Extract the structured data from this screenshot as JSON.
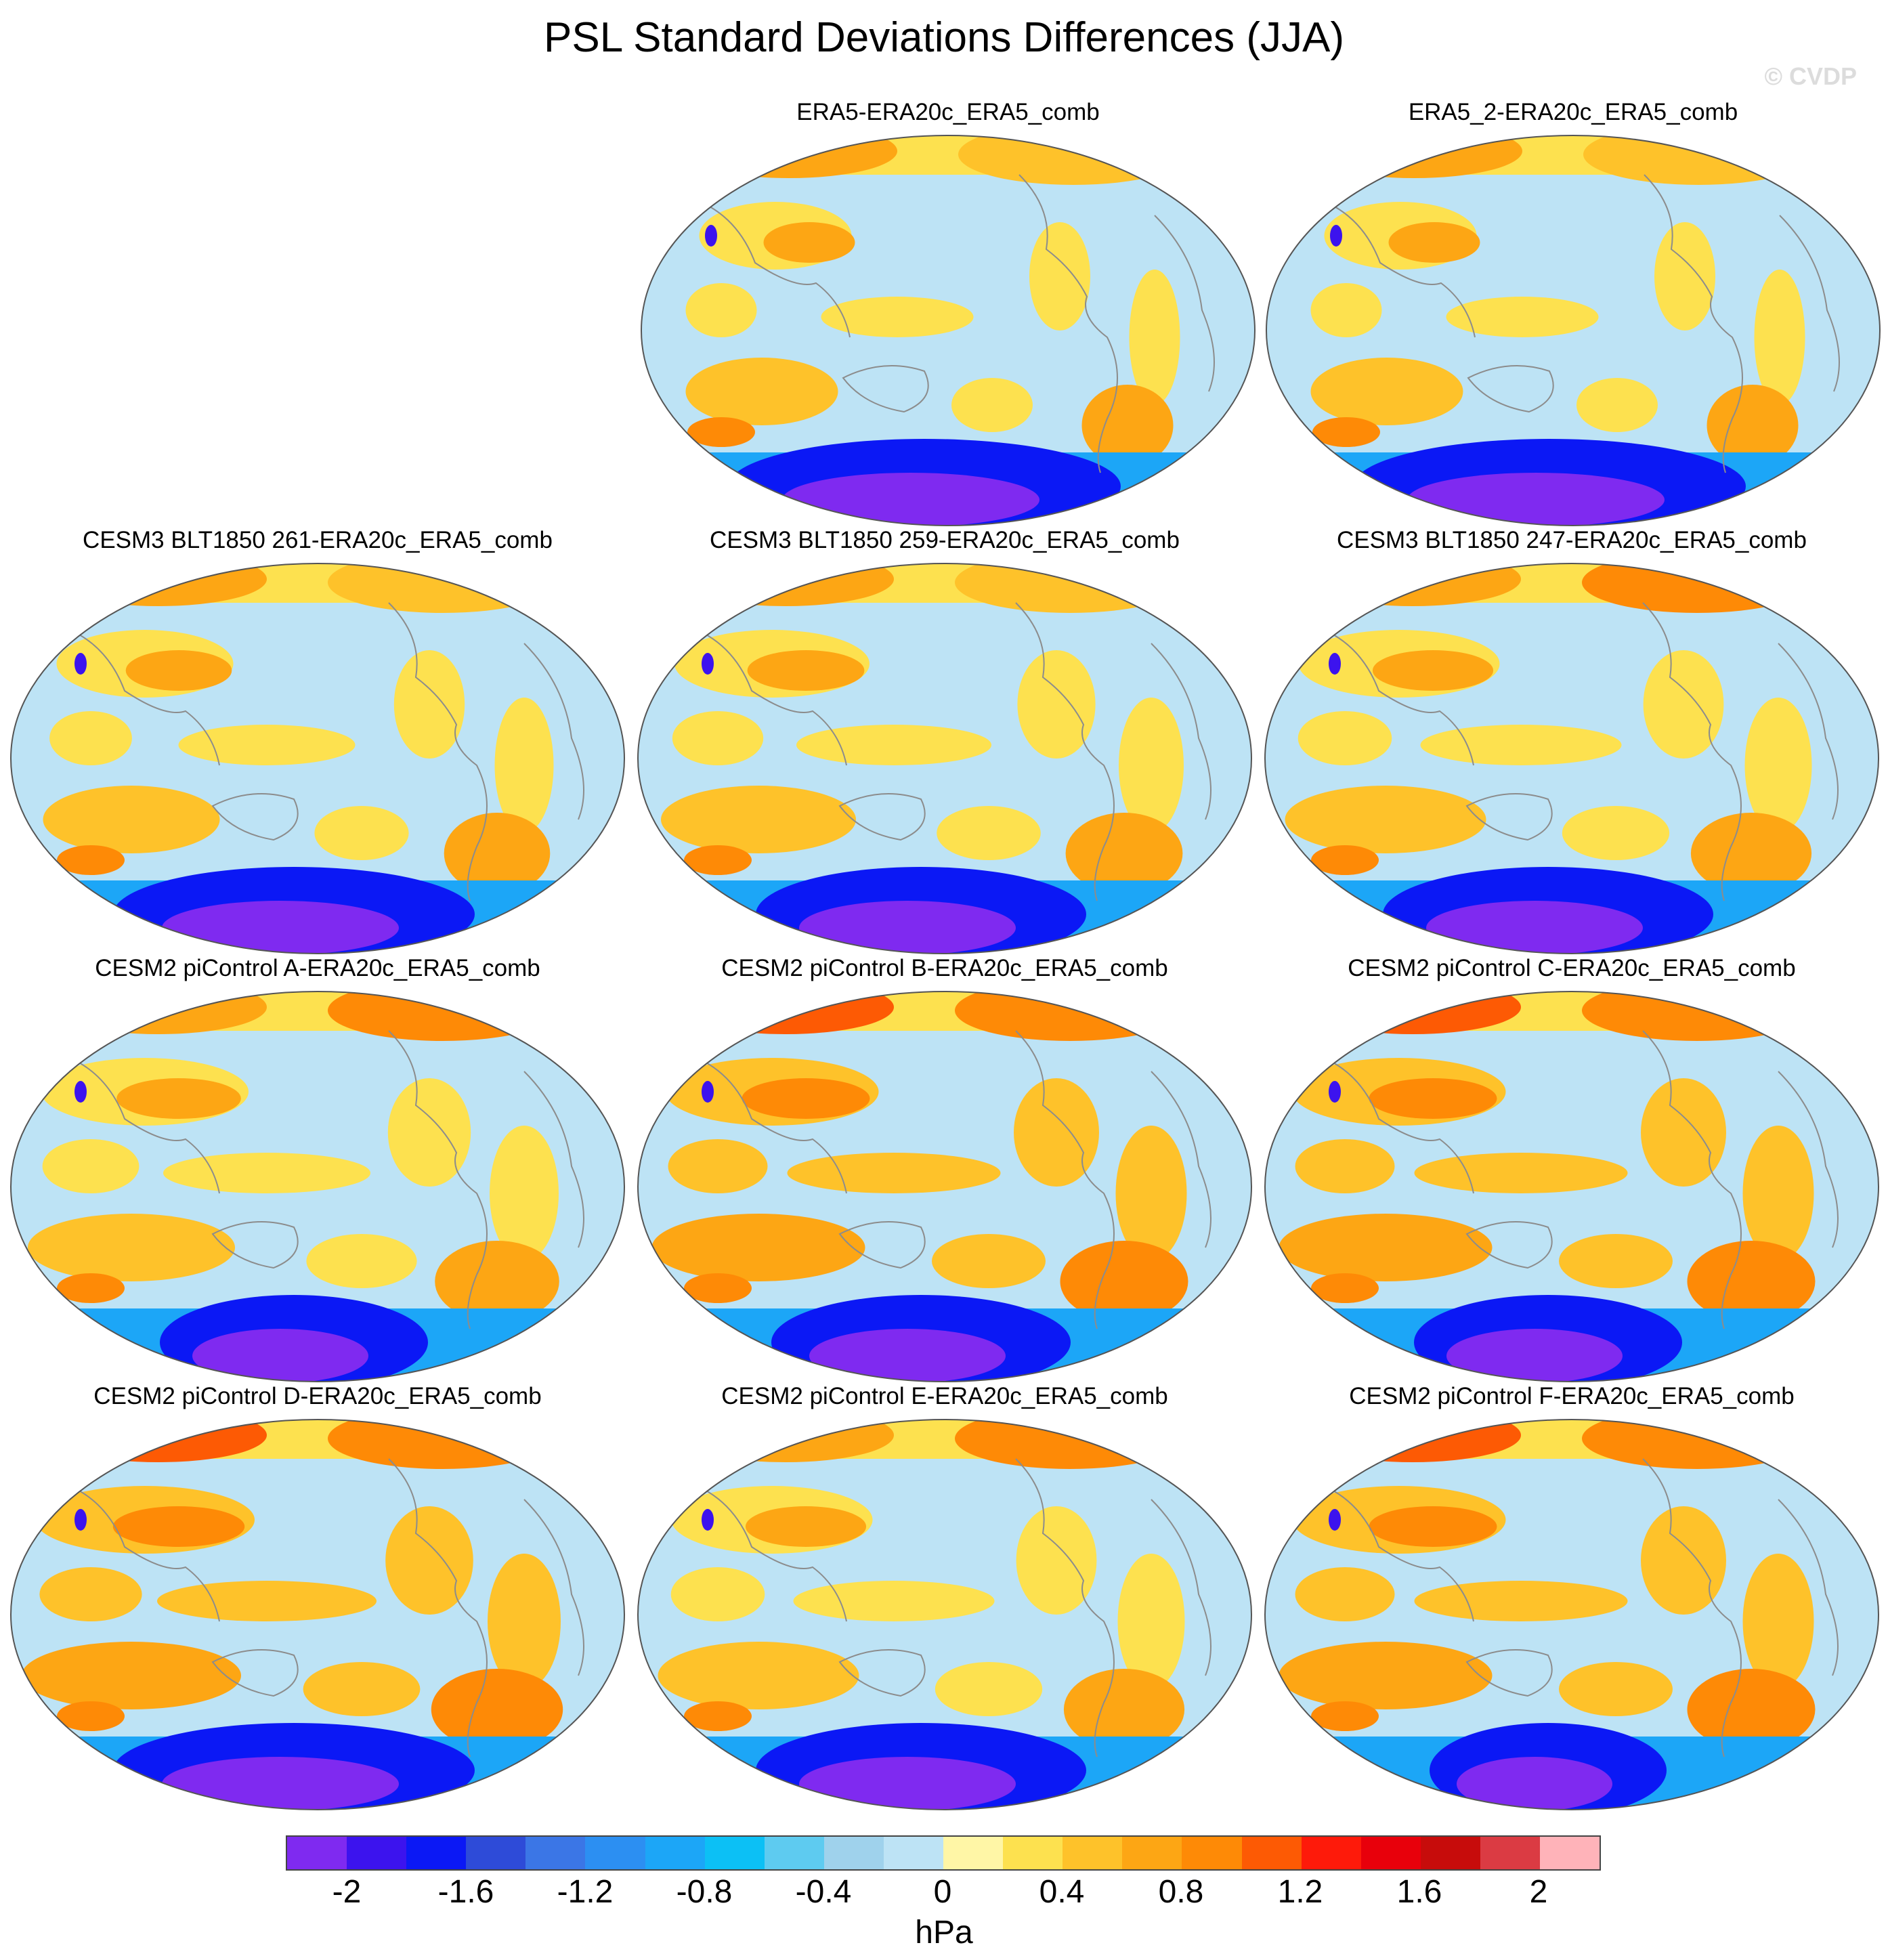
{
  "figure": {
    "title": "PSL Standard Deviations Differences (JJA)",
    "watermark": "© CVDP",
    "units": "hPa"
  },
  "colors": {
    "background": "#ffffff",
    "ocean_base": "#bde3f5",
    "coastline": "#8c8c8c",
    "scale": [
      "#7f2af0",
      "#3c13ee",
      "#0b18f5",
      "#2e4bd8",
      "#3b76e6",
      "#2c8ff2",
      "#1ca6f7",
      "#0cc0f5",
      "#5ecbf0",
      "#9fd2ec",
      "#bde3f5",
      "#fff6a6",
      "#fde14f",
      "#fec22a",
      "#fda614",
      "#fe8a06",
      "#fd5a04",
      "#fe1a0a",
      "#e8000b",
      "#c70c0b",
      "#db3b43",
      "#ffb3b9"
    ]
  },
  "colorbar": {
    "tick_labels": [
      "-2",
      "-1.6",
      "-1.2",
      "-0.8",
      "-0.4",
      "0",
      "0.4",
      "0.8",
      "1.2",
      "1.6",
      "2"
    ]
  },
  "panels": [
    {
      "title": "ERA5-ERA20c_ERA5_comb"
    },
    {
      "title": "ERA5_2-ERA20c_ERA5_comb"
    },
    {
      "title": "CESM3 BLT1850 261-ERA20c_ERA5_comb"
    },
    {
      "title": "CESM3 BLT1850 259-ERA20c_ERA5_comb"
    },
    {
      "title": "CESM3 BLT1850 247-ERA20c_ERA5_comb"
    },
    {
      "title": "CESM2 piControl A-ERA20c_ERA5_comb"
    },
    {
      "title": "CESM2 piControl B-ERA20c_ERA5_comb"
    },
    {
      "title": "CESM2 piControl C-ERA20c_ERA5_comb"
    },
    {
      "title": "CESM2 piControl D-ERA20c_ERA5_comb"
    },
    {
      "title": "CESM2 piControl E-ERA20c_ERA5_comb"
    },
    {
      "title": "CESM2 piControl F-ERA20c_ERA5_comb"
    }
  ]
}
